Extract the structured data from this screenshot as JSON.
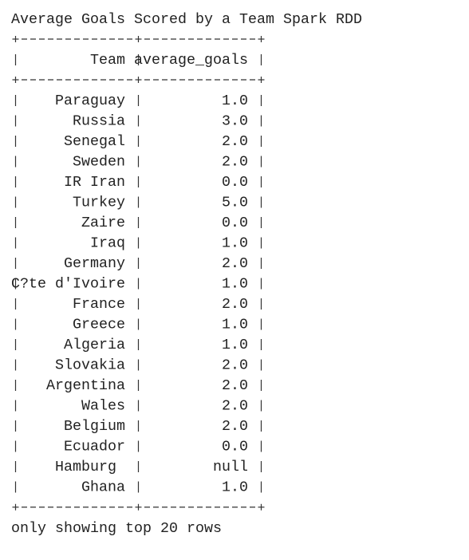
{
  "title": "Average Goals Scored by a Team Spark RDD",
  "table": {
    "columns": [
      "Team",
      "average_goals"
    ],
    "rows": [
      [
        "Paraguay",
        "1.0"
      ],
      [
        "Russia",
        "3.0"
      ],
      [
        "Senegal",
        "2.0"
      ],
      [
        "Sweden",
        "2.0"
      ],
      [
        "IR Iran",
        "0.0"
      ],
      [
        "Turkey",
        "5.0"
      ],
      [
        "Zaire",
        "0.0"
      ],
      [
        "Iraq",
        "1.0"
      ],
      [
        "Germany",
        "2.0"
      ],
      [
        "C?te d'Ivoire",
        "1.0"
      ],
      [
        "France",
        "2.0"
      ],
      [
        "Greece",
        "1.0"
      ],
      [
        "Algeria",
        "1.0"
      ],
      [
        "Slovakia",
        "2.0"
      ],
      [
        "Argentina",
        "2.0"
      ],
      [
        "Wales",
        "2.0"
      ],
      [
        "Belgium",
        "2.0"
      ],
      [
        "Ecuador",
        "0.0"
      ],
      [
        "Hamburg ",
        "null"
      ],
      [
        "Ghana",
        "1.0"
      ]
    ]
  },
  "footer": "only showing top 20 rows"
}
